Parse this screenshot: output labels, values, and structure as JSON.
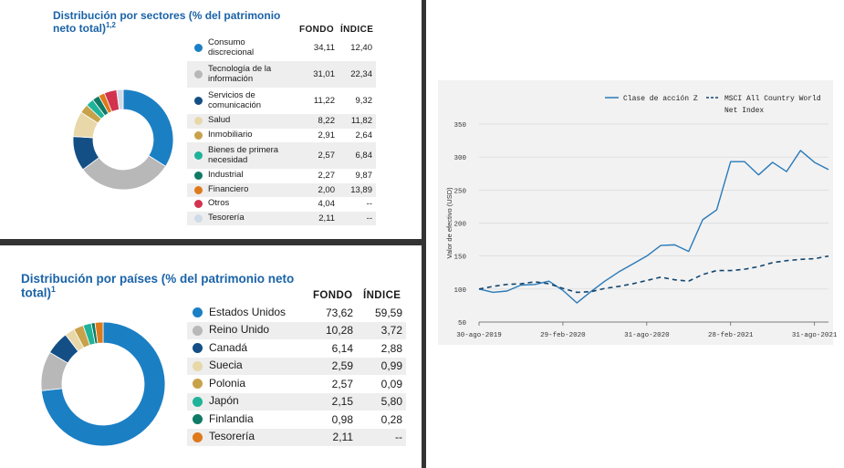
{
  "sectors": {
    "title_line1": "Distribución por sectores (% del patrimonio",
    "title_line2": "neto total)",
    "title_sup": "1,2",
    "col_fondo": "FONDO",
    "col_indice": "ÍNDICE"
  },
  "countries": {
    "title_line1": "Distribución por países (% del patrimonio neto",
    "title_line2": "total)",
    "title_sup": "1",
    "col_fondo": "FONDO",
    "col_indice": "ÍNDICE"
  },
  "chart_data": [
    {
      "type": "pie",
      "title": "Distribución por sectores (% del patrimonio neto total)1,2",
      "columns": [
        "FONDO",
        "ÍNDICE"
      ],
      "categories": [
        {
          "label": "Consumo discrecional",
          "lines": [
            "Consumo",
            "discrecional"
          ],
          "fondo": "34,11",
          "indice": "12,40",
          "value": 34.11,
          "color": "#1b7fc4"
        },
        {
          "label": "Tecnología de la información",
          "lines": [
            "Tecnología de la",
            "información"
          ],
          "fondo": "31,01",
          "indice": "22,34",
          "value": 31.01,
          "color": "#b8b8b8"
        },
        {
          "label": "Servicios de comunicación",
          "lines": [
            "Servicios de",
            "comunicación"
          ],
          "fondo": "11,22",
          "indice": "9,32",
          "value": 11.22,
          "color": "#134f85"
        },
        {
          "label": "Salud",
          "lines": [
            "Salud"
          ],
          "fondo": "8,22",
          "indice": "11,82",
          "value": 8.22,
          "color": "#e8d7a8"
        },
        {
          "label": "Inmobiliario",
          "lines": [
            "Inmobiliario"
          ],
          "fondo": "2,91",
          "indice": "2,64",
          "value": 2.91,
          "color": "#c8a24a"
        },
        {
          "label": "Bienes de primera necesidad",
          "lines": [
            "Bienes de primera",
            "necesidad"
          ],
          "fondo": "2,57",
          "indice": "6,84",
          "value": 2.57,
          "color": "#1fb39a"
        },
        {
          "label": "Industrial",
          "lines": [
            "Industrial"
          ],
          "fondo": "2,27",
          "indice": "9,87",
          "value": 2.27,
          "color": "#0f7a65"
        },
        {
          "label": "Financiero",
          "lines": [
            "Financiero"
          ],
          "fondo": "2,00",
          "indice": "13,89",
          "value": 2.0,
          "color": "#de7a1c"
        },
        {
          "label": "Otros",
          "lines": [
            "Otros"
          ],
          "fondo": "4,04",
          "indice": "--",
          "value": 4.04,
          "color": "#d2334f"
        },
        {
          "label": "Tesorería",
          "lines": [
            "Tesorería"
          ],
          "fondo": "2,11",
          "indice": "--",
          "value": 2.11,
          "color": "#cfdbe8"
        }
      ]
    },
    {
      "type": "pie",
      "title": "Distribución por países (% del patrimonio neto total)1",
      "columns": [
        "FONDO",
        "ÍNDICE"
      ],
      "categories": [
        {
          "label": "Estados Unidos",
          "fondo": "73,62",
          "indice": "59,59",
          "value": 73.62,
          "color": "#1b7fc4"
        },
        {
          "label": "Reino Unido",
          "fondo": "10,28",
          "indice": "3,72",
          "value": 10.28,
          "color": "#b8b8b8"
        },
        {
          "label": "Canadá",
          "fondo": "6,14",
          "indice": "2,88",
          "value": 6.14,
          "color": "#134f85"
        },
        {
          "label": "Suecia",
          "fondo": "2,59",
          "indice": "0,99",
          "value": 2.59,
          "color": "#e8d7a8"
        },
        {
          "label": "Polonia",
          "fondo": "2,57",
          "indice": "0,09",
          "value": 2.57,
          "color": "#c8a24a"
        },
        {
          "label": "Japón",
          "fondo": "2,15",
          "indice": "5,80",
          "value": 2.15,
          "color": "#1fb39a"
        },
        {
          "label": "Finlandia",
          "fondo": "0,98",
          "indice": "0,28",
          "value": 0.98,
          "color": "#0f7a65"
        },
        {
          "label": "Tesorería",
          "fondo": "2,11",
          "indice": "--",
          "value": 2.11,
          "color": "#de7a1c"
        }
      ]
    },
    {
      "type": "line",
      "ylabel": "Valor de efectivo (USD)",
      "xlabel": "",
      "ylim": [
        50,
        350
      ],
      "yticks": [
        50,
        100,
        150,
        200,
        250,
        300,
        350
      ],
      "xtick_labels": [
        "30-ago-2019",
        "29-feb-2020",
        "31-ago-2020",
        "28-feb-2021",
        "31-ago-2021"
      ],
      "xtick_positions": [
        0,
        6,
        12,
        18,
        24
      ],
      "series": [
        {
          "name": "Clase de acción Z",
          "style": "solid",
          "color": "#2a7ab8",
          "values": [
            100,
            95,
            97,
            106,
            107,
            112,
            98,
            79,
            96,
            112,
            126,
            138,
            150,
            166,
            167,
            157,
            205,
            220,
            293,
            293,
            273,
            292,
            278,
            310,
            292,
            281
          ]
        },
        {
          "name": "MSCI All Country World Net Index",
          "legend_lines": [
            "MSCI All Country World",
            "Net Index"
          ],
          "style": "dashed",
          "color": "#14466e",
          "values": [
            100,
            104,
            107,
            108,
            111,
            108,
            101,
            95,
            96,
            101,
            104,
            108,
            113,
            118,
            114,
            112,
            122,
            128,
            128,
            130,
            134,
            140,
            143,
            145,
            146,
            150
          ]
        }
      ]
    }
  ]
}
